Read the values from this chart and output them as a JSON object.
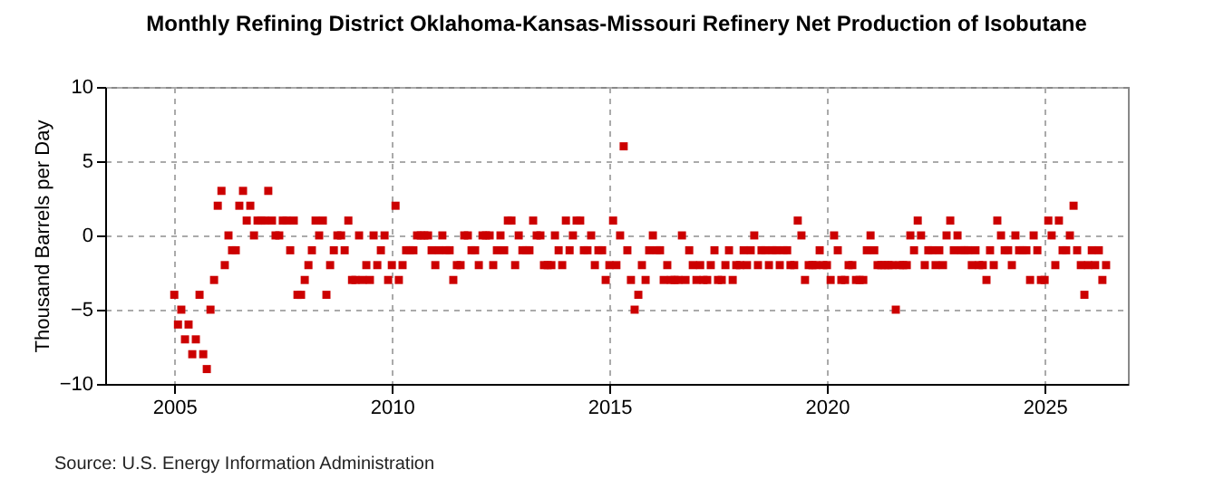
{
  "chart_data": {
    "type": "scatter",
    "title": "Monthly Refining District Oklahoma-Kansas-Missouri Refinery Net Production of Isobutane",
    "ylabel": "Thousand Barrels per Day",
    "annotations": [
      "Source: U.S. Energy Information Administration"
    ],
    "marker": "square",
    "grid": true,
    "color": "#cc0000",
    "xlim": [
      "2003-06",
      "2026-12"
    ],
    "xticks": [
      "2005",
      "2010",
      "2015",
      "2020",
      "2025"
    ],
    "ylim": [
      -10,
      10
    ],
    "yticks": [
      -10,
      -5,
      0,
      5,
      10
    ],
    "x": [
      "2005-01",
      "2005-02",
      "2005-03",
      "2005-04",
      "2005-05",
      "2005-06",
      "2005-07",
      "2005-08",
      "2005-09",
      "2005-10",
      "2005-11",
      "2005-12",
      "2006-01",
      "2006-02",
      "2006-03",
      "2006-04",
      "2006-05",
      "2006-06",
      "2006-07",
      "2006-08",
      "2006-09",
      "2006-10",
      "2006-11",
      "2006-12",
      "2007-01",
      "2007-02",
      "2007-03",
      "2007-04",
      "2007-05",
      "2007-06",
      "2007-07",
      "2007-08",
      "2007-09",
      "2007-10",
      "2007-11",
      "2007-12",
      "2008-01",
      "2008-02",
      "2008-03",
      "2008-04",
      "2008-05",
      "2008-06",
      "2008-07",
      "2008-08",
      "2008-09",
      "2008-10",
      "2008-11",
      "2008-12",
      "2009-01",
      "2009-02",
      "2009-03",
      "2009-04",
      "2009-05",
      "2009-06",
      "2009-07",
      "2009-08",
      "2009-09",
      "2009-10",
      "2009-11",
      "2009-12",
      "2010-01",
      "2010-02",
      "2010-03",
      "2010-04",
      "2010-05",
      "2010-06",
      "2010-07",
      "2010-08",
      "2010-09",
      "2010-10",
      "2010-11",
      "2010-12",
      "2011-01",
      "2011-02",
      "2011-03",
      "2011-04",
      "2011-05",
      "2011-06",
      "2011-07",
      "2011-08",
      "2011-09",
      "2011-10",
      "2011-11",
      "2011-12",
      "2012-01",
      "2012-02",
      "2012-03",
      "2012-04",
      "2012-05",
      "2012-06",
      "2012-07",
      "2012-08",
      "2012-09",
      "2012-10",
      "2012-11",
      "2012-12",
      "2013-01",
      "2013-02",
      "2013-03",
      "2013-04",
      "2013-05",
      "2013-06",
      "2013-07",
      "2013-08",
      "2013-09",
      "2013-10",
      "2013-11",
      "2013-12",
      "2014-01",
      "2014-02",
      "2014-03",
      "2014-04",
      "2014-05",
      "2014-06",
      "2014-07",
      "2014-08",
      "2014-09",
      "2014-10",
      "2014-11",
      "2014-12",
      "2015-01",
      "2015-02",
      "2015-03",
      "2015-04",
      "2015-05",
      "2015-06",
      "2015-07",
      "2015-08",
      "2015-09",
      "2015-10",
      "2015-11",
      "2015-12",
      "2016-01",
      "2016-02",
      "2016-03",
      "2016-04",
      "2016-05",
      "2016-06",
      "2016-07",
      "2016-08",
      "2016-09",
      "2016-10",
      "2016-11",
      "2016-12",
      "2017-01",
      "2017-02",
      "2017-03",
      "2017-04",
      "2017-05",
      "2017-06",
      "2017-07",
      "2017-08",
      "2017-09",
      "2017-10",
      "2017-11",
      "2017-12",
      "2018-01",
      "2018-02",
      "2018-03",
      "2018-04",
      "2018-05",
      "2018-06",
      "2018-07",
      "2018-08",
      "2018-09",
      "2018-10",
      "2018-11",
      "2018-12",
      "2019-01",
      "2019-02",
      "2019-03",
      "2019-04",
      "2019-05",
      "2019-06",
      "2019-07",
      "2019-08",
      "2019-09",
      "2019-10",
      "2019-11",
      "2019-12",
      "2020-01",
      "2020-02",
      "2020-03",
      "2020-04",
      "2020-05",
      "2020-06",
      "2020-07",
      "2020-08",
      "2020-09",
      "2020-10",
      "2020-11",
      "2020-12",
      "2021-01",
      "2021-02",
      "2021-03",
      "2021-04",
      "2021-05",
      "2021-06",
      "2021-07",
      "2021-08",
      "2021-09",
      "2021-10",
      "2021-11",
      "2021-12",
      "2022-01",
      "2022-02",
      "2022-03",
      "2022-04",
      "2022-05",
      "2022-06",
      "2022-07",
      "2022-08",
      "2022-09",
      "2022-10",
      "2022-11",
      "2022-12",
      "2023-01",
      "2023-02",
      "2023-03",
      "2023-04",
      "2023-05",
      "2023-06",
      "2023-07",
      "2023-08",
      "2023-09",
      "2023-10",
      "2023-11",
      "2023-12",
      "2024-01",
      "2024-02",
      "2024-03",
      "2024-04",
      "2024-05",
      "2024-06",
      "2024-07",
      "2024-08",
      "2024-09",
      "2024-10",
      "2024-11",
      "2024-12",
      "2025-01",
      "2025-02",
      "2025-03",
      "2025-04",
      "2025-05",
      "2025-06",
      "2025-07",
      "2025-08",
      "2025-09",
      "2025-10",
      "2025-11",
      "2025-12",
      "2026-01",
      "2026-02",
      "2026-03",
      "2026-04",
      "2026-05",
      "2026-06"
    ],
    "values": [
      -4,
      -6,
      -5,
      -7,
      -6,
      -8,
      -7,
      -4,
      -8,
      -9,
      -5,
      -3,
      2,
      3,
      -2,
      0,
      -1,
      -1,
      2,
      3,
      1,
      2,
      0,
      1,
      1,
      1,
      3,
      1,
      0,
      0,
      1,
      1,
      -1,
      1,
      -4,
      -4,
      -3,
      -2,
      -1,
      1,
      0,
      1,
      -4,
      -2,
      -1,
      0,
      0,
      -1,
      1,
      -3,
      -3,
      0,
      -3,
      -2,
      -3,
      0,
      -2,
      -1,
      0,
      -3,
      -2,
      2,
      -3,
      -2,
      -1,
      -1,
      -1,
      0,
      0,
      0,
      0,
      -1,
      -2,
      -1,
      0,
      -1,
      -1,
      -3,
      -2,
      -2,
      0,
      0,
      -1,
      -1,
      -2,
      0,
      0,
      0,
      -2,
      -1,
      0,
      -1,
      1,
      1,
      -2,
      0,
      -1,
      -1,
      -1,
      1,
      0,
      0,
      -2,
      -2,
      -2,
      0,
      -1,
      -2,
      1,
      -1,
      0,
      1,
      1,
      -1,
      -1,
      0,
      -2,
      -1,
      -1,
      -3,
      -2,
      1,
      -2,
      0,
      6,
      -1,
      -3,
      -5,
      -4,
      -2,
      -3,
      -1,
      0,
      -1,
      -1,
      -3,
      -2,
      -3,
      -3,
      -3,
      0,
      -3,
      -1,
      -2,
      -3,
      -2,
      -3,
      -3,
      -2,
      -1,
      -3,
      -3,
      -2,
      -1,
      -3,
      -2,
      -2,
      -1,
      -2,
      -1,
      0,
      -2,
      -1,
      -1,
      -2,
      -1,
      -1,
      -2,
      -1,
      -1,
      -2,
      -2,
      1,
      0,
      -3,
      -2,
      -2,
      -2,
      -1,
      -2,
      -2,
      -3,
      0,
      -1,
      -3,
      -3,
      -2,
      -2,
      -3,
      -3,
      -3,
      -1,
      0,
      -1,
      -2,
      -2,
      -2,
      -2,
      -2,
      -5,
      -2,
      -2,
      -2,
      0,
      -1,
      1,
      0,
      -2,
      -1,
      -1,
      -2,
      -1,
      -2,
      0,
      1,
      -1,
      0,
      -1,
      -1,
      -1,
      -2,
      -1,
      -2,
      -2,
      -3,
      -1,
      -2,
      1,
      0,
      -1,
      -1,
      -2,
      0,
      -1,
      -1,
      -1,
      -3,
      0,
      -1,
      -3,
      -3,
      1,
      0,
      -2,
      1,
      -1,
      -1,
      0,
      2,
      -1,
      -2,
      -4,
      -2,
      -1,
      -2,
      -1,
      -3,
      -2
    ]
  }
}
